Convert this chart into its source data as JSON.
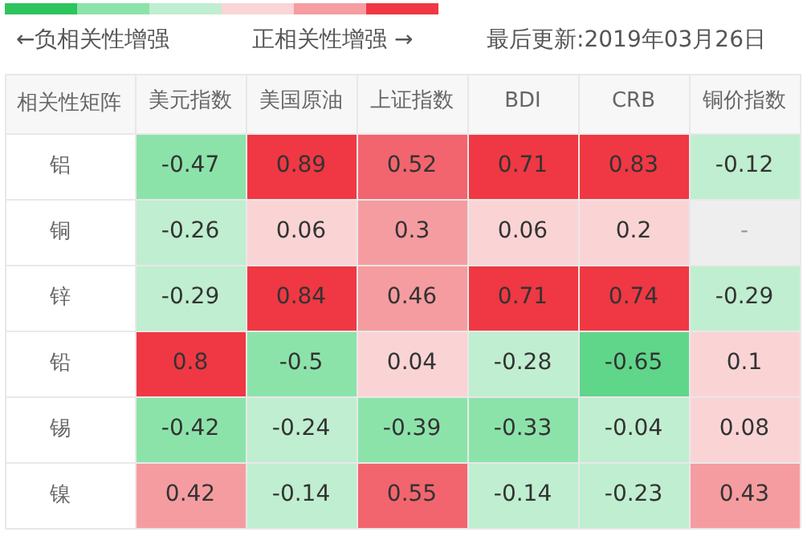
{
  "chart_data": {
    "type": "heatmap",
    "ylabel": "相关性矩阵",
    "data_labels": true,
    "annotations": [
      "←负相关性增强",
      "正相关性增强 →",
      "最后更新:2019年03月26日"
    ],
    "categories": [
      "美元指数",
      "美国原油",
      "上证指数",
      "BDI",
      "CRB",
      "铜价指数"
    ],
    "y_categories": [
      "铝",
      "铜",
      "锌",
      "铅",
      "锡",
      "镍"
    ],
    "cells": [
      [
        -0.47,
        0.89,
        0.52,
        0.71,
        0.83,
        -0.12
      ],
      [
        -0.26,
        0.06,
        0.3,
        0.06,
        0.2,
        null
      ],
      [
        -0.29,
        0.84,
        0.46,
        0.71,
        0.74,
        -0.29
      ],
      [
        0.8,
        -0.5,
        0.04,
        -0.28,
        -0.65,
        0.1
      ],
      [
        -0.42,
        -0.24,
        -0.39,
        -0.33,
        -0.04,
        0.08
      ],
      [
        0.42,
        -0.14,
        0.55,
        -0.14,
        -0.23,
        0.43
      ]
    ],
    "cell_labels": [
      [
        "-0.47",
        "0.89",
        "0.52",
        "0.71",
        "0.83",
        "-0.12"
      ],
      [
        "-0.26",
        "0.06",
        "0.3",
        "0.06",
        "0.2",
        "-"
      ],
      [
        "-0.29",
        "0.84",
        "0.46",
        "0.71",
        "0.74",
        "-0.29"
      ],
      [
        "0.8",
        "-0.5",
        "0.04",
        "-0.28",
        "-0.65",
        "0.1"
      ],
      [
        "-0.42",
        "-0.24",
        "-0.39",
        "-0.33",
        "-0.04",
        "0.08"
      ],
      [
        "0.42",
        "-0.14",
        "0.55",
        "-0.14",
        "-0.23",
        "0.43"
      ]
    ]
  }
}
